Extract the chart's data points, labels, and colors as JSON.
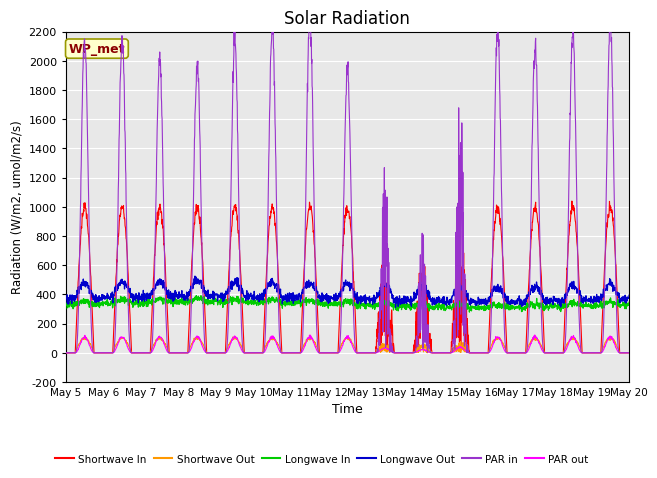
{
  "title": "Solar Radiation",
  "xlabel": "Time",
  "ylabel": "Radiation (W/m2, umol/m2/s)",
  "ylim": [
    -200,
    2200
  ],
  "yticks": [
    -200,
    0,
    200,
    400,
    600,
    800,
    1000,
    1200,
    1400,
    1600,
    1800,
    2000,
    2200
  ],
  "n_days": 15,
  "bg_color": "#e8e8e8",
  "fig_bg": "#ffffff",
  "annotation_text": "WP_met",
  "annotation_bg": "#ffffcc",
  "annotation_border": "#999900",
  "colors": {
    "shortwave_in": "#ff0000",
    "shortwave_out": "#ff9900",
    "longwave_in": "#00cc00",
    "longwave_out": "#0000cc",
    "par_in": "#9933cc",
    "par_out": "#ff00ff"
  },
  "legend_labels": [
    "Shortwave In",
    "Shortwave Out",
    "Longwave In",
    "Longwave Out",
    "PAR in",
    "PAR out"
  ],
  "x_tick_labels": [
    "May 5",
    "May 6",
    "May 7",
    "May 8",
    "May 9",
    "May 10",
    "May 11",
    "May 12",
    "May 13",
    "May 14",
    "May 15",
    "May 16",
    "May 17",
    "May 18",
    "May 19",
    "May 20"
  ],
  "n_points": 2160,
  "title_fontsize": 12,
  "axis_label_fontsize": 9,
  "tick_fontsize": 8
}
